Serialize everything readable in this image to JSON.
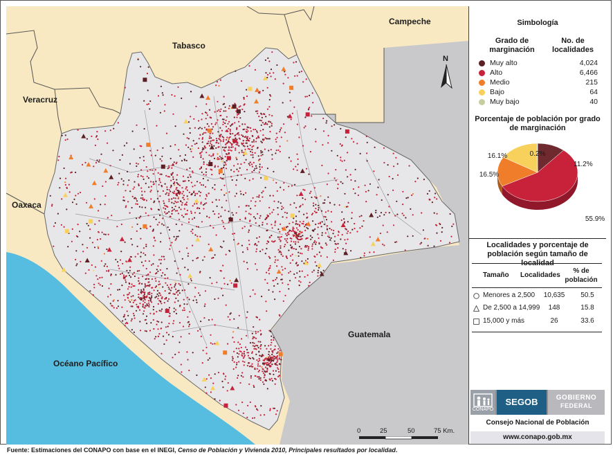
{
  "map": {
    "labels": {
      "campeche": "Campeche",
      "tabasco": "Tabasco",
      "veracruz": "Veracruz",
      "oaxaca": "Oaxaca",
      "guatemala": "Guatemala",
      "pacific": "Océano Pacífico"
    },
    "north_label": "N",
    "scale": {
      "ticks": [
        "0",
        "25",
        "50",
        "75 Km."
      ]
    },
    "colors": {
      "muy_alto": "#5c2024",
      "alto": "#c8213a",
      "medio": "#ef7d2a",
      "bajo": "#f7d15b",
      "muy_bajo": "#c7cda0",
      "land_neighbor": "#f9e9c2",
      "chiapas": "#e7e7e9",
      "guatemala": "#c9c9cb",
      "ocean": "#56bde0"
    }
  },
  "legend": {
    "title": "Simbología",
    "col_grado": "Grado de marginación",
    "col_num": "No. de localidades",
    "rows": [
      {
        "name": "Muy alto",
        "count": "4,024",
        "color": "#5c2024"
      },
      {
        "name": "Alto",
        "count": "6,466",
        "color": "#c8213a"
      },
      {
        "name": "Medio",
        "count": "215",
        "color": "#ef7d2a"
      },
      {
        "name": "Bajo",
        "count": "64",
        "color": "#f7d15b"
      },
      {
        "name": "Muy bajo",
        "count": "40",
        "color": "#c7cda0"
      }
    ]
  },
  "pie": {
    "title": "Porcentaje de población por grado de marginación",
    "slices": [
      {
        "name": "Muy alto",
        "value": 11.2,
        "label": "11.2%",
        "color": "#6e2a2e"
      },
      {
        "name": "Alto",
        "value": 55.9,
        "label": "55.9%",
        "color": "#c8213a"
      },
      {
        "name": "Medio",
        "value": 16.5,
        "label": "16.5%",
        "color": "#ef7d2a"
      },
      {
        "name": "Bajo",
        "value": 16.1,
        "label": "16.1%",
        "color": "#f7d15b"
      },
      {
        "name": "Muy bajo",
        "value": 0.2,
        "label": "0.2%",
        "color": "#c7cda0"
      }
    ]
  },
  "size_table": {
    "title": "Localidades y porcentaje de población según tamaño de localidad",
    "headers": {
      "size": "Tamaño",
      "locs": "Localidades",
      "pct": "% de población"
    },
    "rows": [
      {
        "shape": "circle",
        "size": "Menores a 2,500",
        "locs": "10,635",
        "pct": "50.5"
      },
      {
        "shape": "triangle",
        "size": "De 2,500 a 14,999",
        "locs": "148",
        "pct": "15.8"
      },
      {
        "shape": "square",
        "size": "15,000 y más",
        "locs": "26",
        "pct": "33.6"
      }
    ]
  },
  "logos": {
    "conapo": "CONAPO",
    "segob": "SEGOB",
    "gobierno_1": "GOBIERNO",
    "gobierno_2": "FEDERAL"
  },
  "institution": "Consejo Nacional de Población",
  "website": "www.conapo.gob.mx",
  "footer": {
    "prefix": "Fuente: Estimaciones del CONAPO con base en el INEGI, ",
    "italic": "Censo de Población y Vivienda 2010, Principales resultados por localidad",
    "suffix": "."
  }
}
